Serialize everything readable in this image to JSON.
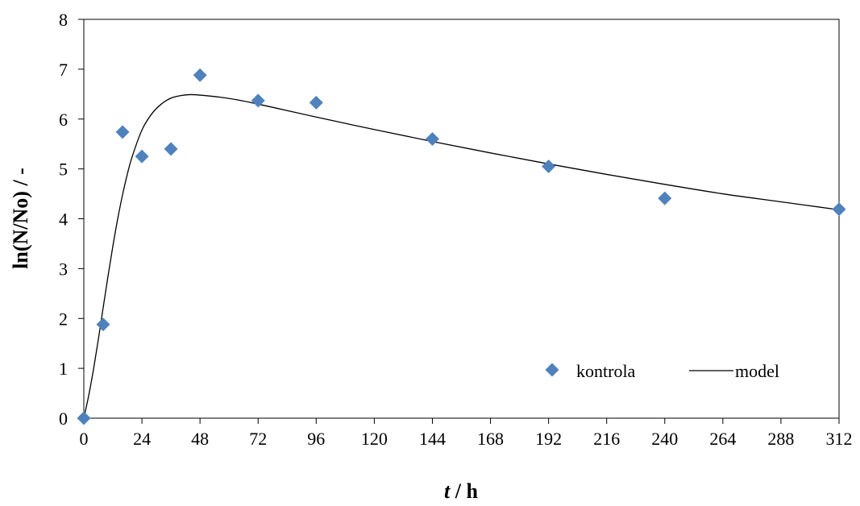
{
  "chart_data": {
    "type": "scatter",
    "xlabel_italic": "t",
    "xlabel_rest": " / h",
    "ylabel": "ln(N/No) / -",
    "xlim": [
      0,
      312
    ],
    "ylim": [
      0,
      8
    ],
    "x_ticks": [
      0,
      24,
      48,
      72,
      96,
      120,
      144,
      168,
      192,
      216,
      240,
      264,
      288,
      312
    ],
    "y_ticks": [
      0,
      1,
      2,
      3,
      4,
      5,
      6,
      7,
      8
    ],
    "grid": false,
    "legend_position": "bottom-right",
    "series": [
      {
        "name": "kontrola",
        "kind": "marker",
        "marker": "diamond",
        "color": "#4F81BD",
        "x": [
          0,
          8,
          16,
          24,
          36,
          48,
          72,
          96,
          144,
          192,
          240,
          312
        ],
        "y": [
          0.0,
          1.88,
          5.74,
          5.25,
          5.4,
          6.88,
          6.37,
          6.33,
          5.6,
          5.05,
          4.41,
          4.19
        ]
      },
      {
        "name": "model",
        "kind": "line",
        "color": "#000000",
        "x": [
          0,
          2,
          4,
          6,
          8,
          10,
          12,
          14,
          16,
          18,
          20,
          24,
          28,
          32,
          36,
          40,
          44,
          48,
          56,
          64,
          72,
          84,
          96,
          120,
          144,
          168,
          192,
          216,
          240,
          264,
          288,
          312
        ],
        "y": [
          0.0,
          0.45,
          0.98,
          1.58,
          2.22,
          2.85,
          3.45,
          4.0,
          4.48,
          4.9,
          5.25,
          5.78,
          6.1,
          6.3,
          6.42,
          6.47,
          6.49,
          6.48,
          6.44,
          6.38,
          6.3,
          6.17,
          6.04,
          5.79,
          5.55,
          5.32,
          5.1,
          4.89,
          4.69,
          4.5,
          4.34,
          4.18
        ]
      }
    ]
  }
}
